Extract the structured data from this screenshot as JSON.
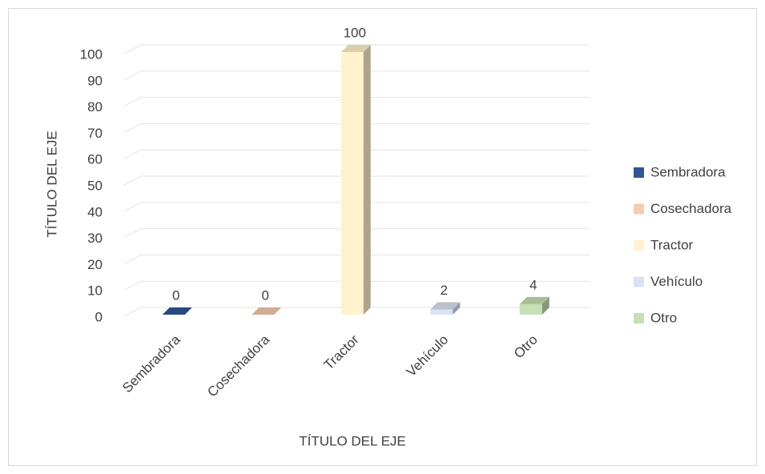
{
  "chart_data": {
    "type": "bar3d",
    "categories": [
      "Sembradora",
      "Cosechadora",
      "Tractor",
      "Vehículo",
      "Otro"
    ],
    "values": [
      0,
      0,
      100,
      2,
      4
    ],
    "colors": [
      "#2f5597",
      "#f8cbad",
      "#fff2cc",
      "#dae3f3",
      "#c5e0b4"
    ],
    "x_label": "TÍTULO DEL EJE",
    "y_label": "TÍTULO DEL EJE",
    "ylim": [
      0,
      100
    ],
    "yticks": [
      0,
      10,
      20,
      30,
      40,
      50,
      60,
      70,
      80,
      90,
      100
    ],
    "grid": true,
    "legend": "right"
  }
}
